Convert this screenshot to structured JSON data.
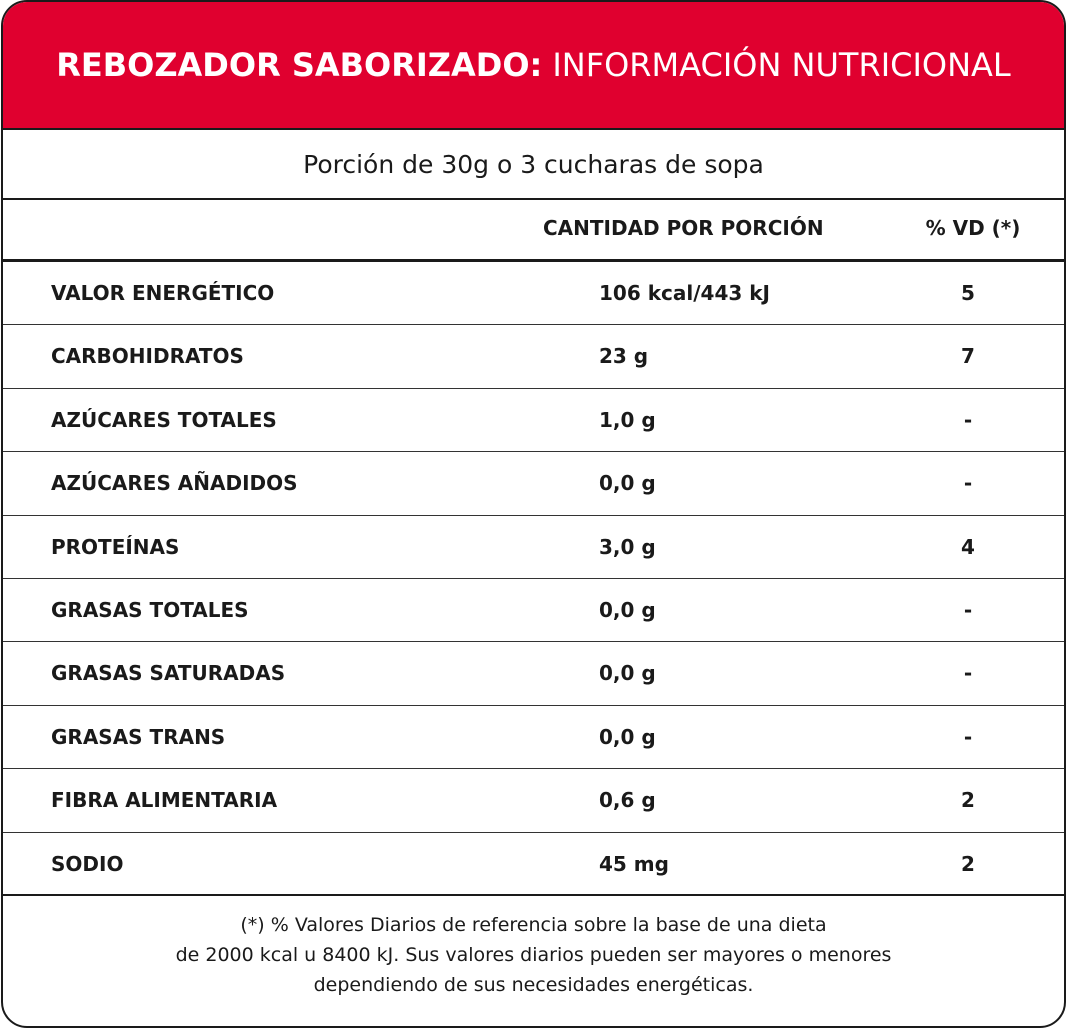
{
  "header": {
    "title_bold": "REBOZADOR SABORIZADO:",
    "title_light": "INFORMACIÓN NUTRICIONAL"
  },
  "portion": "Porción de 30g o 3 cucharas de sopa",
  "columns": {
    "amount": "CANTIDAD POR PORCIÓN",
    "vd": "% VD (*)"
  },
  "rows": [
    {
      "name": "VALOR ENERGÉTICO",
      "amount": "106 kcal/443 kJ",
      "vd": "5"
    },
    {
      "name": "CARBOHIDRATOS",
      "amount": "23 g",
      "vd": "7"
    },
    {
      "name": "AZÚCARES TOTALES",
      "amount": "1,0 g",
      "vd": "-"
    },
    {
      "name": "AZÚCARES AÑADIDOS",
      "amount": "0,0 g",
      "vd": "-"
    },
    {
      "name": "PROTEÍNAS",
      "amount": "3,0 g",
      "vd": "4"
    },
    {
      "name": "GRASAS TOTALES",
      "amount": "0,0 g",
      "vd": "-"
    },
    {
      "name": "GRASAS SATURADAS",
      "amount": "0,0 g",
      "vd": "-"
    },
    {
      "name": "GRASAS TRANS",
      "amount": "0,0 g",
      "vd": "-"
    },
    {
      "name": "FIBRA ALIMENTARIA",
      "amount": "0,6 g",
      "vd": "2"
    },
    {
      "name": "SODIO",
      "amount": "45 mg",
      "vd": "2"
    }
  ],
  "footnote": {
    "line1": "(*) % Valores Diarios de referencia sobre la base de una dieta",
    "line2": "de 2000 kcal u 8400 kJ. Sus valores diarios pueden ser mayores o menores",
    "line3": "dependiendo de sus necesidades energéticas."
  },
  "colors": {
    "header_bg": "#e0002f",
    "header_text": "#ffffff",
    "text": "#1a1a1a"
  }
}
